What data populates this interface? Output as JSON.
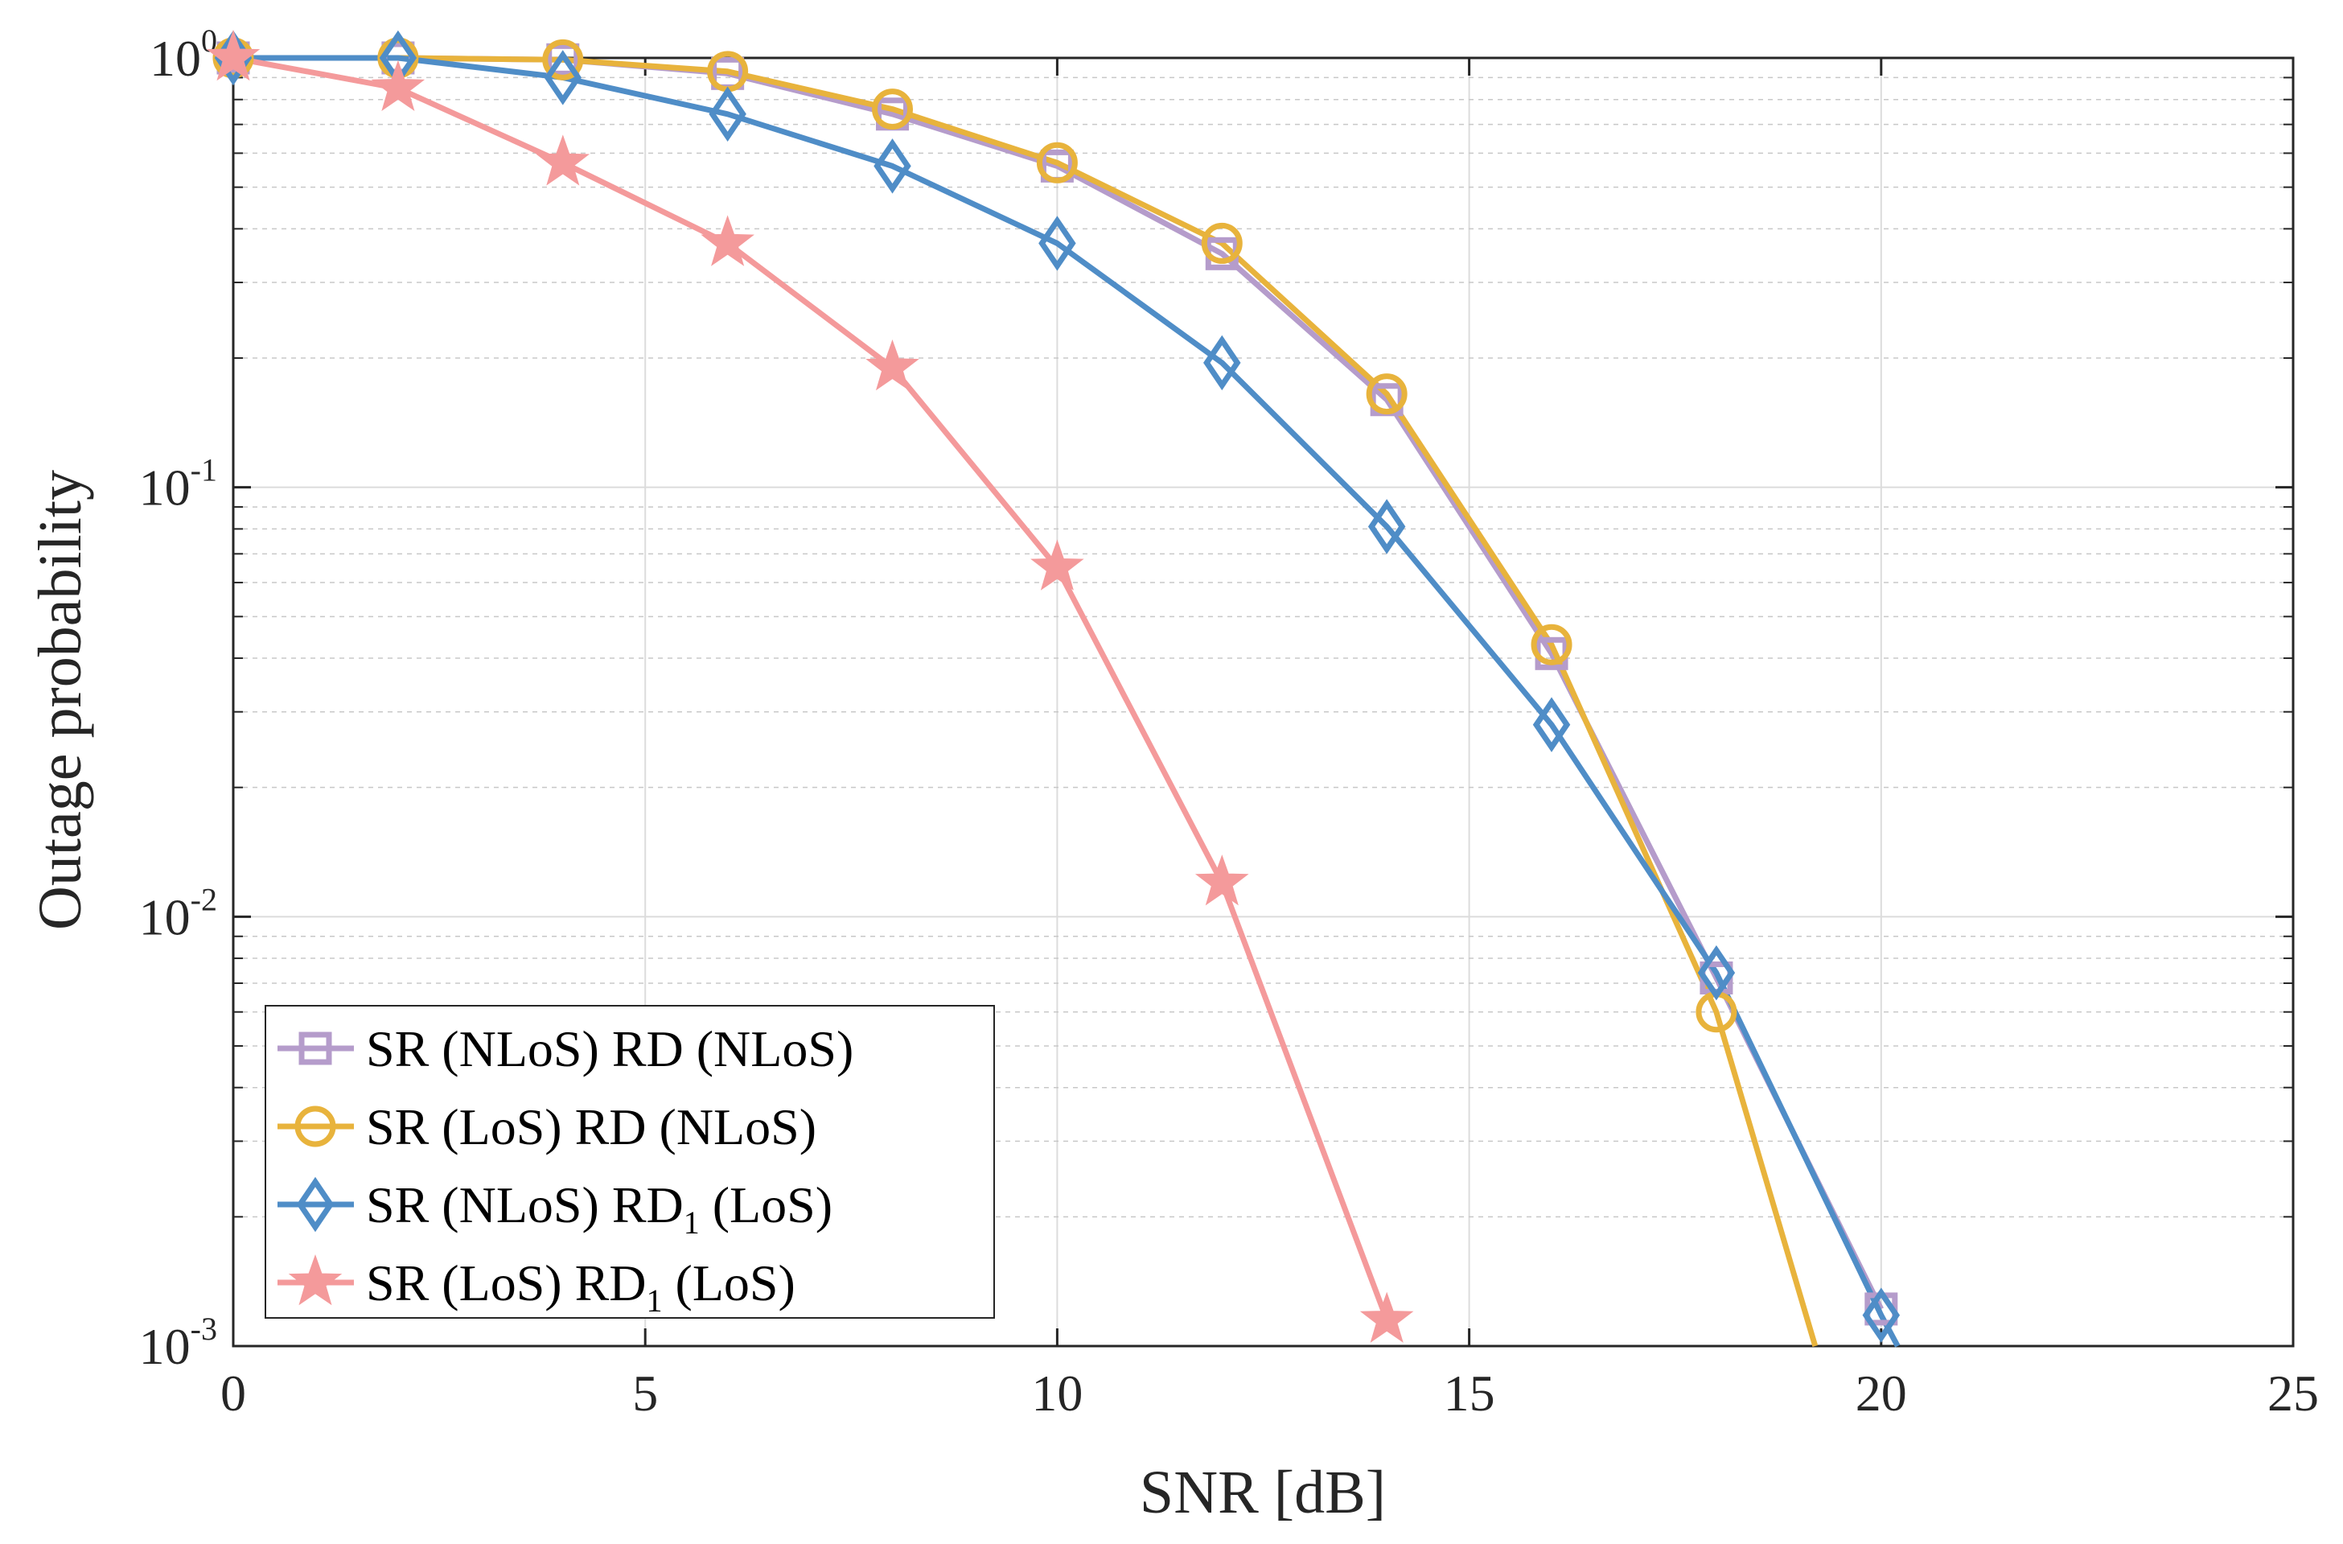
{
  "chart_data": {
    "type": "line",
    "yscale": "log",
    "xlabel": "SNR [dB]",
    "ylabel": "Outage probability",
    "xlim": [
      0,
      25
    ],
    "ylim": [
      0.001,
      1
    ],
    "grid": true,
    "xticks": [
      0,
      5,
      10,
      15,
      20,
      25
    ],
    "xtick_labels": [
      "0",
      "5",
      "10",
      "15",
      "20",
      "25"
    ],
    "yticks": [
      {
        "value": 1,
        "base": "10",
        "exp": "0"
      },
      {
        "value": 0.1,
        "base": "10",
        "exp": "-1"
      },
      {
        "value": 0.01,
        "base": "10",
        "exp": "-2"
      },
      {
        "value": 0.001,
        "base": "10",
        "exp": "-3"
      }
    ],
    "legend_position": "bottom-left",
    "series": [
      {
        "name": "SR (NLoS) RD (NLoS)",
        "label_main": "SR (NLoS) RD",
        "label_sub": "",
        "label_tail": " (NLoS)",
        "color": "#B59CCB",
        "marker": "square",
        "x": [
          0,
          2,
          4,
          6,
          8,
          10,
          12,
          14,
          16,
          18,
          20
        ],
        "values": [
          1.0,
          1.0,
          0.99,
          0.92,
          0.74,
          0.56,
          0.35,
          0.16,
          0.041,
          0.0072,
          0.00122
        ]
      },
      {
        "name": "SR (LoS) RD (NLoS)",
        "label_main": "SR (LoS) RD",
        "label_sub": "",
        "label_tail": " (NLoS)",
        "color": "#E8B33C",
        "marker": "circle",
        "x": [
          0,
          2,
          4,
          6,
          8,
          10,
          12,
          14,
          16,
          18,
          19.2
        ],
        "values": [
          1.0,
          1.0,
          0.99,
          0.93,
          0.76,
          0.57,
          0.37,
          0.165,
          0.043,
          0.006,
          0.001
        ],
        "marker_x": [
          0,
          2,
          4,
          6,
          8,
          10,
          12,
          14,
          16,
          18
        ]
      },
      {
        "name": "SR (NLoS) RD1 (LoS)",
        "label_main": "SR (NLoS) RD",
        "label_sub": "1",
        "label_tail": " (LoS)",
        "color": "#4F8DC7",
        "marker": "diamond",
        "x": [
          0,
          2,
          4,
          6,
          8,
          10,
          12,
          14,
          16,
          18,
          20,
          20.2
        ],
        "values": [
          1.0,
          1.0,
          0.9,
          0.74,
          0.56,
          0.37,
          0.195,
          0.081,
          0.028,
          0.0074,
          0.00118,
          0.001
        ],
        "marker_x": [
          0,
          2,
          4,
          6,
          8,
          10,
          12,
          14,
          16,
          18,
          20
        ]
      },
      {
        "name": "SR (LoS) RD1 (LoS)",
        "label_main": "SR (LoS) RD",
        "label_sub": "1",
        "label_tail": " (LoS)",
        "color": "#F49A9B",
        "marker": "star",
        "x": [
          0,
          2,
          4,
          6,
          8,
          10,
          12,
          14
        ],
        "values": [
          1.0,
          0.85,
          0.57,
          0.37,
          0.19,
          0.065,
          0.012,
          0.00115
        ]
      }
    ]
  }
}
